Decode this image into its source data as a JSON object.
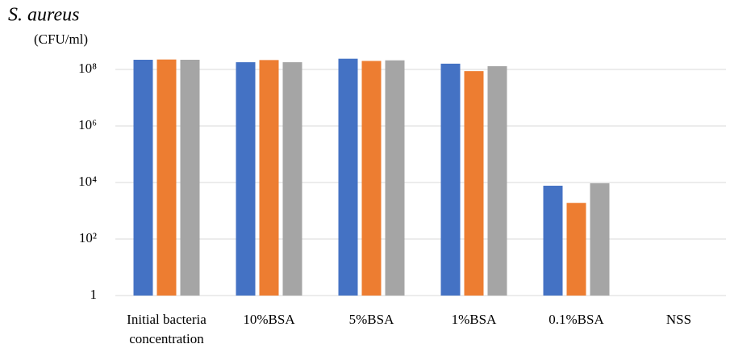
{
  "chart_data": {
    "type": "bar",
    "title": "S. aureus",
    "y_label": "(CFU/ml)",
    "categories": [
      "Initial bacteria concentration",
      "10%BSA",
      "5%BSA",
      "1%BSA",
      "0.1%BSA",
      "NSS"
    ],
    "series": [
      {
        "color": "#4472c4",
        "values": [
          220000000,
          180000000,
          240000000,
          160000000,
          7700,
          null
        ]
      },
      {
        "color": "#ed7d31",
        "values": [
          225000000,
          215000000,
          200000000,
          87000000,
          1900,
          null
        ]
      },
      {
        "color": "#a5a5a5",
        "values": [
          220000000,
          180000000,
          210000000,
          130000000,
          9400,
          null
        ]
      }
    ],
    "log_scale": true,
    "ylim": [
      1,
      1000000000
    ],
    "yticks": [
      1,
      {
        "value": 100,
        "label": "10²"
      },
      {
        "value": 10000,
        "label": "10⁴"
      },
      {
        "value": 1000000,
        "label": "10⁶"
      },
      {
        "value": 100000000,
        "label": "10⁸"
      }
    ],
    "grid": true
  }
}
